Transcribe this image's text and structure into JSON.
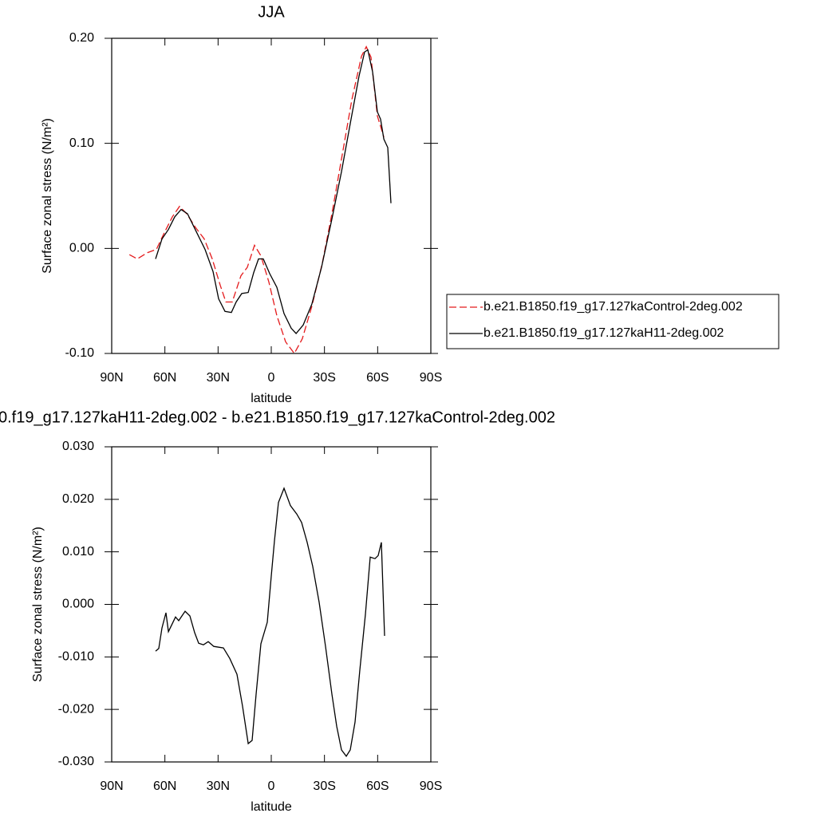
{
  "chart_data": [
    {
      "type": "line",
      "title": "JJA",
      "xlabel": "latitude",
      "ylabel": "Surface zonal stress (N/m²)",
      "xlim": [
        90,
        -90
      ],
      "xticks": [
        {
          "value": 90,
          "label": "90N"
        },
        {
          "value": 60,
          "label": "60N"
        },
        {
          "value": 30,
          "label": "30N"
        },
        0,
        {
          "value": -30,
          "label": "30S"
        },
        {
          "value": -60,
          "label": "60S"
        },
        {
          "value": -90,
          "label": "90S"
        }
      ],
      "ylim": [
        -0.1,
        0.2
      ],
      "yticks": [
        {
          "value": -0.1,
          "label": "-0.10"
        },
        {
          "value": 0,
          "label": "0.00"
        },
        {
          "value": 0.1,
          "label": "0.10"
        },
        {
          "value": 0.2,
          "label": "0.20"
        }
      ],
      "legend": "right",
      "series": [
        {
          "name": "b.e21.B1850.f19_g17.127kaControl-2deg.002",
          "color": "#e41a1c",
          "dashed": true,
          "x": [
            80,
            75.6,
            69.75,
            64.8,
            60.3,
            55.8,
            51.75,
            47.7,
            42.75,
            37.8,
            33.3,
            28.8,
            25.6,
            22,
            17.1,
            13.5,
            9.45,
            5.85,
            1.35,
            -3.15,
            -8.1,
            -13,
            -17.5,
            -22.9,
            -28.8,
            -34.2,
            -39.6,
            -45.5,
            -50.9,
            -53.6,
            -56.25,
            -59.85,
            -63.5
          ],
          "values": [
            -0.006,
            -0.01,
            -0.004,
            -0.001,
            0.015,
            0.03,
            0.04,
            0.033,
            0.02,
            0.009,
            -0.01,
            -0.035,
            -0.051,
            -0.051,
            -0.026,
            -0.018,
            0.003,
            -0.007,
            -0.032,
            -0.064,
            -0.089,
            -0.1,
            -0.086,
            -0.055,
            -0.014,
            0.033,
            0.085,
            0.142,
            0.183,
            0.192,
            0.182,
            0.126,
            0.106
          ]
        },
        {
          "name": "b.e21.B1850.f19_g17.127kaH11-2deg.002",
          "color": "#000000",
          "dashed": false,
          "x": [
            65.25,
            61.65,
            58,
            54.45,
            50.85,
            47.25,
            42.3,
            37.35,
            32.85,
            29.7,
            26.1,
            22.5,
            19.8,
            16.65,
            13,
            9.9,
            7.2,
            4.5,
            0.9,
            -3.15,
            -7.2,
            -11.25,
            -14,
            -18,
            -22.9,
            -28.35,
            -34.2,
            -39.6,
            -45,
            -49.5,
            -52.65,
            -54.45,
            -57.15,
            -59.85,
            -61.65,
            -63.5,
            -65.7,
            -67.5
          ],
          "values": [
            -0.01,
            0.009,
            0.018,
            0.03,
            0.037,
            0.033,
            0.016,
            -0.001,
            -0.022,
            -0.048,
            -0.06,
            -0.061,
            -0.051,
            -0.043,
            -0.042,
            -0.023,
            -0.01,
            -0.01,
            -0.024,
            -0.037,
            -0.062,
            -0.076,
            -0.081,
            -0.073,
            -0.053,
            -0.018,
            0.028,
            0.073,
            0.123,
            0.164,
            0.187,
            0.189,
            0.168,
            0.13,
            0.123,
            0.104,
            0.096,
            0.043
          ]
        }
      ]
    },
    {
      "type": "line",
      "title": "0.f19_g17.127kaH11-2deg.002 - b.e21.B1850.f19_g17.127kaControl-2deg.002",
      "xlabel": "latitude",
      "ylabel": "Surface zonal stress (N/m²)",
      "xlim": [
        90,
        -90
      ],
      "xticks": [
        {
          "value": 90,
          "label": "90N"
        },
        {
          "value": 60,
          "label": "60N"
        },
        {
          "value": 30,
          "label": "30N"
        },
        0,
        {
          "value": -30,
          "label": "30S"
        },
        {
          "value": -60,
          "label": "60S"
        },
        {
          "value": -90,
          "label": "90S"
        }
      ],
      "ylim": [
        -0.03,
        0.03
      ],
      "yticks": [
        {
          "value": -0.03,
          "label": "-0.030"
        },
        {
          "value": -0.02,
          "label": "-0.020"
        },
        {
          "value": -0.01,
          "label": "-0.010"
        },
        {
          "value": 0,
          "label": "0.000"
        },
        {
          "value": 0.01,
          "label": "0.010"
        },
        {
          "value": 0.02,
          "label": "0.020"
        },
        {
          "value": 0.03,
          "label": "0.030"
        }
      ],
      "series": [
        {
          "color": "#000000",
          "dashed": false,
          "x": [
            65.25,
            63.45,
            61.65,
            59.4,
            58,
            54,
            52.2,
            48.6,
            45.9,
            43.2,
            40.95,
            38.25,
            35.55,
            32.4,
            27,
            23.4,
            19.35,
            16.2,
            13,
            10.8,
            8.55,
            5.85,
            2.25,
            0,
            -1.8,
            -4.05,
            -7.2,
            -10.8,
            -14.4,
            -17.1,
            -20.25,
            -23.4,
            -27,
            -30.6,
            -34.2,
            -36.9,
            -39.6,
            -42.3,
            -44.55,
            -47.25,
            -49.95,
            -53.1,
            -55.8,
            -58.5,
            -60.3,
            -62.1,
            -63.9
          ],
          "values": [
            -0.0089,
            -0.0084,
            -0.0045,
            -0.0016,
            -0.0052,
            -0.0024,
            -0.0031,
            -0.0013,
            -0.0022,
            -0.0054,
            -0.0074,
            -0.0077,
            -0.0071,
            -0.008,
            -0.0083,
            -0.0103,
            -0.0133,
            -0.0194,
            -0.0265,
            -0.0259,
            -0.0171,
            -0.0075,
            -0.0034,
            0.0054,
            0.0121,
            0.0194,
            0.0221,
            0.0188,
            0.0172,
            0.0156,
            0.0118,
            0.0072,
            0.0004,
            -0.008,
            -0.0171,
            -0.0232,
            -0.0277,
            -0.0289,
            -0.0277,
            -0.0224,
            -0.0125,
            -0.0019,
            0.009,
            0.0087,
            0.0093,
            0.0118,
            -0.006
          ]
        }
      ]
    }
  ]
}
